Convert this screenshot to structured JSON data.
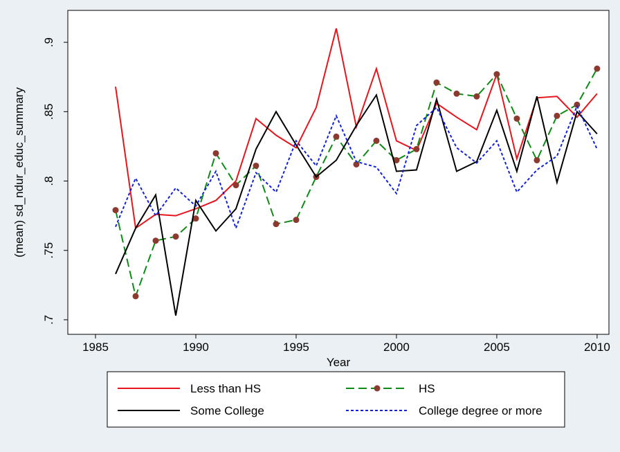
{
  "chart_data": {
    "type": "line",
    "y_label": "(mean) sd_ndur_educ_summary",
    "x_label": "Year",
    "x": [
      1986,
      1987,
      1988,
      1989,
      1990,
      1991,
      1992,
      1993,
      1994,
      1995,
      1996,
      1997,
      1998,
      1999,
      2000,
      2001,
      2002,
      2003,
      2004,
      2005,
      2006,
      2007,
      2008,
      2009,
      2010
    ],
    "series": [
      {
        "name": "Less than HS",
        "color": "#e8141c",
        "dash": "solid",
        "marker": false,
        "values": [
          0.868,
          0.766,
          0.776,
          0.775,
          0.78,
          0.786,
          0.8,
          0.845,
          0.833,
          0.824,
          0.853,
          0.91,
          0.839,
          0.881,
          0.829,
          0.822,
          0.856,
          0.846,
          0.837,
          0.877,
          0.816,
          0.86,
          0.861,
          0.846,
          0.863
        ]
      },
      {
        "name": "HS",
        "color": "#0a8c14",
        "dash": "dashed",
        "marker": true,
        "marker_color": "#8c3a30",
        "values": [
          0.779,
          0.717,
          0.757,
          0.76,
          0.773,
          0.82,
          0.797,
          0.811,
          0.769,
          0.772,
          0.803,
          0.832,
          0.812,
          0.829,
          0.815,
          0.823,
          0.871,
          0.863,
          0.861,
          0.877,
          0.845,
          0.815,
          0.847,
          0.855,
          0.881
        ]
      },
      {
        "name": "Some College",
        "color": "#000000",
        "dash": "solid",
        "marker": false,
        "values": [
          0.733,
          0.766,
          0.79,
          0.703,
          0.786,
          0.764,
          0.78,
          0.823,
          0.85,
          0.826,
          0.803,
          0.815,
          0.84,
          0.862,
          0.807,
          0.808,
          0.859,
          0.807,
          0.814,
          0.851,
          0.807,
          0.861,
          0.799,
          0.85,
          0.834
        ]
      },
      {
        "name": "College degree or more",
        "color": "#1020e0",
        "dash": "dotted",
        "marker": false,
        "values": [
          0.767,
          0.802,
          0.775,
          0.795,
          0.782,
          0.807,
          0.766,
          0.806,
          0.792,
          0.829,
          0.811,
          0.847,
          0.814,
          0.81,
          0.791,
          0.84,
          0.853,
          0.824,
          0.813,
          0.829,
          0.792,
          0.808,
          0.818,
          0.854,
          0.823
        ]
      }
    ],
    "xlim": [
      1983.62,
      2010.59
    ],
    "ylim": [
      0.6895,
      0.923
    ],
    "xticks": [
      1985,
      1990,
      1995,
      2000,
      2005,
      2010
    ],
    "yticks": [
      {
        "value": 0.7,
        "label": ".7"
      },
      {
        "value": 0.75,
        "label": ".75"
      },
      {
        "value": 0.8,
        "label": ".8"
      },
      {
        "value": 0.85,
        "label": ".85"
      },
      {
        "value": 0.9,
        "label": ".9"
      }
    ],
    "grid": false,
    "legend_position": "bottom"
  }
}
